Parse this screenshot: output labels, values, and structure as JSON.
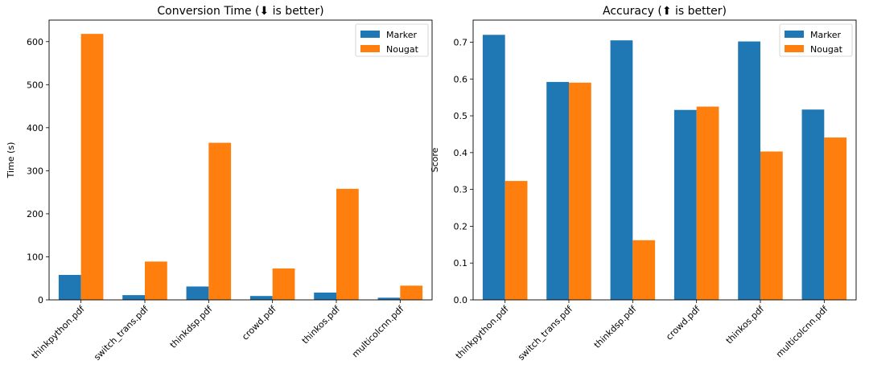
{
  "chart_data": [
    {
      "type": "bar",
      "title": "Conversion Time (⬇ is better)",
      "xlabel": "",
      "ylabel": "Time (s)",
      "ylim": [
        0,
        650
      ],
      "yticks": [
        0,
        100,
        200,
        300,
        400,
        500,
        600
      ],
      "categories": [
        "thinkpython.pdf",
        "switch_trans.pdf",
        "thinkdsp.pdf",
        "crowd.pdf",
        "thinkos.pdf",
        "multicolcnn.pdf"
      ],
      "series": [
        {
          "name": "Marker",
          "color": "#1f77b4",
          "values": [
            58,
            11,
            31,
            9,
            17,
            5
          ]
        },
        {
          "name": "Nougat",
          "color": "#ff7f0e",
          "values": [
            618,
            89,
            365,
            73,
            258,
            33
          ]
        }
      ],
      "legend": "top-right"
    },
    {
      "type": "bar",
      "title": "Accuracy (⬆ is better)",
      "xlabel": "",
      "ylabel": "Score",
      "ylim": [
        0,
        0.76
      ],
      "yticks": [
        "0.0",
        "0.1",
        "0.2",
        "0.3",
        "0.4",
        "0.5",
        "0.6",
        "0.7"
      ],
      "categories": [
        "thinkpython.pdf",
        "switch_trans.pdf",
        "thinkdsp.pdf",
        "crowd.pdf",
        "thinkos.pdf",
        "multicolcnn.pdf"
      ],
      "series": [
        {
          "name": "Marker",
          "color": "#1f77b4",
          "values": [
            0.72,
            0.592,
            0.705,
            0.516,
            0.702,
            0.517
          ]
        },
        {
          "name": "Nougat",
          "color": "#ff7f0e",
          "values": [
            0.323,
            0.59,
            0.162,
            0.525,
            0.403,
            0.441
          ]
        }
      ],
      "legend": "top-right"
    }
  ]
}
